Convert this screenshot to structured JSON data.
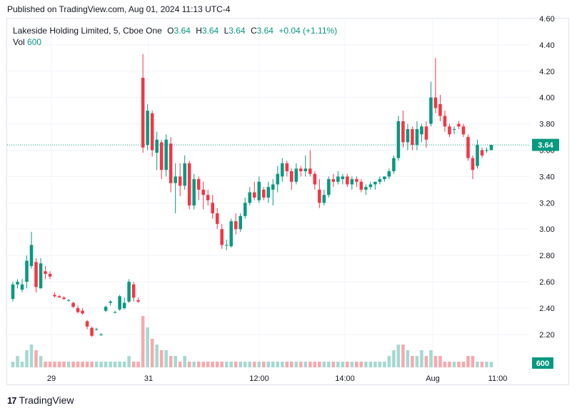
{
  "header": {
    "published": "Published on TradingView.com, Aug 01, 2024 11:13 UTC-4"
  },
  "legend": {
    "symbol": "Lakeside Holding Limited, 5, Cboe One",
    "o_label": "O",
    "o_value": "3.64",
    "h_label": "H",
    "h_value": "3.64",
    "l_label": "L",
    "l_value": "3.64",
    "c_label": "C",
    "c_value": "3.64",
    "change": "+0.04 (+1.11%)",
    "vol_label": "Vol",
    "vol_value": "600"
  },
  "footer": {
    "brand": "TradingView"
  },
  "colors": {
    "up": "#089981",
    "down": "#f23645",
    "up_vol": "#a5d9d1",
    "down_vol": "#f7a9ae",
    "grid": "#f0f3fa"
  },
  "chart_data": {
    "type": "candlestick",
    "y_ticks": [
      "2.20",
      "2.40",
      "2.60",
      "2.80",
      "3.00",
      "3.20",
      "3.40",
      "3.60",
      "3.80",
      "4.00",
      "4.20",
      "4.40",
      "4.60"
    ],
    "ylim": [
      1.95,
      4.6
    ],
    "x_ticks": [
      "29",
      "31",
      "12:00",
      "14:00",
      "Aug",
      "11:00"
    ],
    "last_price": "3.64",
    "last_volume": "600",
    "candles": [
      [
        2.47,
        2.6,
        2.45,
        2.58,
        1
      ],
      [
        2.58,
        2.62,
        2.55,
        2.6,
        2
      ],
      [
        2.54,
        2.62,
        2.52,
        2.58,
        1
      ],
      [
        2.6,
        2.8,
        2.55,
        2.76,
        3
      ],
      [
        2.72,
        2.98,
        2.7,
        2.88,
        4
      ],
      [
        2.75,
        2.78,
        2.52,
        2.56,
        3
      ],
      [
        2.55,
        2.78,
        2.55,
        2.74,
        2
      ],
      [
        2.68,
        2.72,
        2.62,
        2.66,
        1
      ],
      [
        2.66,
        2.68,
        2.62,
        2.64,
        1
      ],
      [
        2.5,
        2.52,
        2.48,
        2.49,
        1
      ],
      [
        2.49,
        2.5,
        2.48,
        2.48,
        1
      ],
      [
        2.48,
        2.49,
        2.46,
        2.47,
        1
      ],
      [
        2.46,
        2.47,
        2.45,
        2.46,
        1
      ],
      [
        2.44,
        2.45,
        2.4,
        2.41,
        1
      ],
      [
        2.4,
        2.42,
        2.36,
        2.37,
        1
      ],
      [
        2.38,
        2.4,
        2.35,
        2.36,
        1
      ],
      [
        2.3,
        2.31,
        2.24,
        2.26,
        1
      ],
      [
        2.25,
        2.26,
        2.18,
        2.19,
        1
      ],
      [
        2.24,
        2.25,
        2.23,
        2.24,
        1
      ],
      [
        2.2,
        2.21,
        2.19,
        2.2,
        1
      ],
      [
        2.38,
        2.42,
        2.37,
        2.41,
        1
      ],
      [
        2.44,
        2.46,
        2.42,
        2.45,
        1
      ],
      [
        2.37,
        2.38,
        2.36,
        2.37,
        1
      ],
      [
        2.39,
        2.5,
        2.38,
        2.49,
        1
      ],
      [
        2.4,
        2.48,
        2.39,
        2.44,
        1
      ],
      [
        2.45,
        2.62,
        2.44,
        2.6,
        2
      ],
      [
        2.58,
        2.6,
        2.45,
        2.48,
        1
      ],
      [
        2.46,
        2.48,
        2.44,
        2.45,
        1
      ],
      [
        4.15,
        4.33,
        3.58,
        3.62,
        9
      ],
      [
        3.64,
        3.95,
        3.6,
        3.9,
        7
      ],
      [
        3.88,
        3.9,
        3.55,
        3.6,
        5
      ],
      [
        3.58,
        3.74,
        3.45,
        3.68,
        4
      ],
      [
        3.66,
        3.68,
        3.38,
        3.45,
        3
      ],
      [
        3.45,
        3.72,
        3.4,
        3.68,
        3
      ],
      [
        3.65,
        3.7,
        3.28,
        3.35,
        2
      ],
      [
        3.35,
        3.5,
        3.12,
        3.4,
        2
      ],
      [
        3.4,
        3.5,
        3.25,
        3.33,
        1
      ],
      [
        3.33,
        3.56,
        3.3,
        3.5,
        2
      ],
      [
        3.5,
        3.52,
        3.15,
        3.18,
        1
      ],
      [
        3.18,
        3.42,
        3.15,
        3.38,
        1
      ],
      [
        3.38,
        3.4,
        3.22,
        3.3,
        1
      ],
      [
        3.3,
        3.36,
        3.15,
        3.26,
        1
      ],
      [
        3.26,
        3.3,
        3.18,
        3.22,
        1
      ],
      [
        3.2,
        3.26,
        3.08,
        3.12,
        1
      ],
      [
        3.12,
        3.16,
        3.0,
        3.04,
        1
      ],
      [
        3.0,
        3.04,
        2.85,
        2.88,
        1
      ],
      [
        2.88,
        2.92,
        2.84,
        2.88,
        1
      ],
      [
        2.87,
        3.08,
        2.86,
        3.06,
        1
      ],
      [
        3.06,
        3.12,
        2.96,
        3.0,
        1
      ],
      [
        3.0,
        3.12,
        2.98,
        3.1,
        1
      ],
      [
        3.1,
        3.24,
        3.08,
        3.2,
        1
      ],
      [
        3.2,
        3.32,
        3.18,
        3.28,
        1
      ],
      [
        3.28,
        3.36,
        3.22,
        3.24,
        1
      ],
      [
        3.22,
        3.4,
        3.2,
        3.36,
        1
      ],
      [
        3.3,
        3.32,
        3.22,
        3.24,
        1
      ],
      [
        3.24,
        3.36,
        3.2,
        3.32,
        1
      ],
      [
        3.3,
        3.38,
        3.18,
        3.34,
        1
      ],
      [
        3.34,
        3.48,
        3.28,
        3.42,
        1
      ],
      [
        3.4,
        3.54,
        3.36,
        3.5,
        1
      ],
      [
        3.5,
        3.52,
        3.4,
        3.44,
        1
      ],
      [
        3.44,
        3.46,
        3.3,
        3.36,
        1
      ],
      [
        3.36,
        3.5,
        3.34,
        3.46,
        1
      ],
      [
        3.46,
        3.48,
        3.4,
        3.44,
        1
      ],
      [
        3.44,
        3.56,
        3.4,
        3.46,
        1
      ],
      [
        3.46,
        3.6,
        3.4,
        3.42,
        1
      ],
      [
        3.42,
        3.44,
        3.3,
        3.34,
        1
      ],
      [
        3.3,
        3.38,
        3.16,
        3.2,
        1
      ],
      [
        3.2,
        3.3,
        3.18,
        3.26,
        1
      ],
      [
        3.26,
        3.4,
        3.24,
        3.38,
        1
      ],
      [
        3.38,
        3.42,
        3.32,
        3.36,
        1
      ],
      [
        3.36,
        3.44,
        3.34,
        3.4,
        1
      ],
      [
        3.38,
        3.42,
        3.34,
        3.4,
        1
      ],
      [
        3.4,
        3.42,
        3.32,
        3.34,
        1
      ],
      [
        3.34,
        3.4,
        3.3,
        3.38,
        1
      ],
      [
        3.38,
        3.4,
        3.32,
        3.36,
        1
      ],
      [
        3.36,
        3.38,
        3.28,
        3.3,
        1
      ],
      [
        3.3,
        3.34,
        3.26,
        3.32,
        1
      ],
      [
        3.32,
        3.36,
        3.3,
        3.34,
        1
      ],
      [
        3.34,
        3.36,
        3.3,
        3.36,
        1
      ],
      [
        3.36,
        3.4,
        3.34,
        3.38,
        1
      ],
      [
        3.38,
        3.4,
        3.36,
        3.4,
        1
      ],
      [
        3.4,
        3.46,
        3.38,
        3.44,
        2
      ],
      [
        3.44,
        3.56,
        3.42,
        3.54,
        3
      ],
      [
        3.54,
        3.86,
        3.52,
        3.82,
        4
      ],
      [
        3.82,
        3.9,
        3.62,
        3.66,
        4
      ],
      [
        3.66,
        3.8,
        3.6,
        3.76,
        3
      ],
      [
        3.76,
        3.78,
        3.6,
        3.64,
        2
      ],
      [
        3.64,
        3.82,
        3.6,
        3.76,
        2
      ],
      [
        3.72,
        3.8,
        3.66,
        3.78,
        3
      ],
      [
        3.78,
        3.82,
        3.62,
        3.68,
        2
      ],
      [
        3.8,
        4.12,
        3.78,
        4.0,
        3
      ],
      [
        4.0,
        4.3,
        3.88,
        3.92,
        2
      ],
      [
        3.95,
        4.02,
        3.82,
        3.86,
        2
      ],
      [
        3.86,
        3.9,
        3.74,
        3.78,
        1
      ],
      [
        3.78,
        3.8,
        3.7,
        3.72,
        1
      ],
      [
        3.76,
        3.78,
        3.72,
        3.76,
        1
      ],
      [
        3.8,
        3.82,
        3.76,
        3.78,
        1
      ],
      [
        3.78,
        3.8,
        3.7,
        3.72,
        1
      ],
      [
        3.7,
        3.72,
        3.52,
        3.54,
        2
      ],
      [
        3.54,
        3.56,
        3.38,
        3.45,
        2
      ],
      [
        3.48,
        3.68,
        3.46,
        3.64,
        1
      ],
      [
        3.6,
        3.62,
        3.54,
        3.56,
        1
      ],
      [
        3.6,
        3.62,
        3.58,
        3.6,
        1
      ],
      [
        3.6,
        3.64,
        3.6,
        3.64,
        1
      ]
    ]
  }
}
